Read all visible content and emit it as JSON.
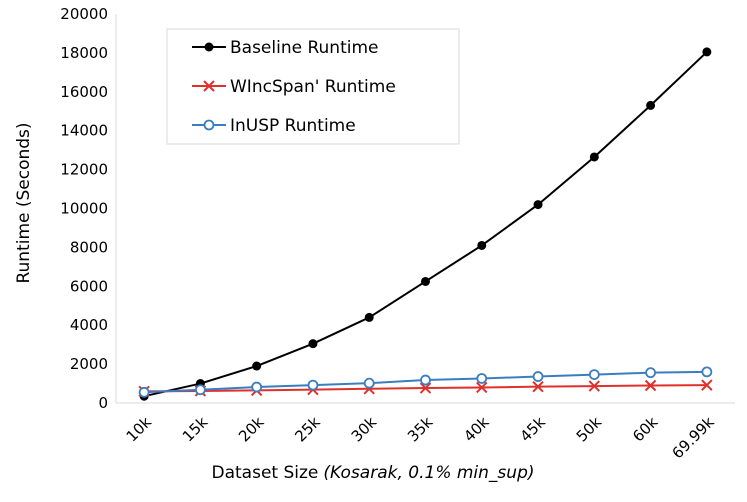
{
  "chart_data": {
    "type": "line",
    "title": "",
    "xlabel": "Dataset Size",
    "xlabel_italic": "(Kosarak, 0.1% min_sup)",
    "ylabel": "Runtime (Seconds)",
    "ylim": [
      0,
      20000
    ],
    "yticks": [
      0,
      2000,
      4000,
      6000,
      8000,
      10000,
      12000,
      14000,
      16000,
      18000,
      20000
    ],
    "categories": [
      "10k",
      "15k",
      "20k",
      "25k",
      "30k",
      "35k",
      "40k",
      "45k",
      "50k",
      "60k",
      "69.99k"
    ],
    "grid": false,
    "legend_position": "top-left",
    "series": [
      {
        "name": "Baseline Runtime",
        "color": "#000000",
        "marker": "filled-circle",
        "values": [
          350,
          1000,
          1900,
          3050,
          4400,
          6250,
          8100,
          10200,
          12650,
          15300,
          18050
        ]
      },
      {
        "name": "WIncSpan' Runtime",
        "color": "#e0302c",
        "marker": "x",
        "values": [
          600,
          620,
          650,
          690,
          730,
          770,
          800,
          840,
          870,
          900,
          920
        ]
      },
      {
        "name": "InUSP Runtime",
        "color": "#3a7dc0",
        "marker": "open-circle",
        "values": [
          550,
          680,
          820,
          920,
          1020,
          1180,
          1260,
          1360,
          1460,
          1560,
          1600
        ]
      }
    ]
  }
}
